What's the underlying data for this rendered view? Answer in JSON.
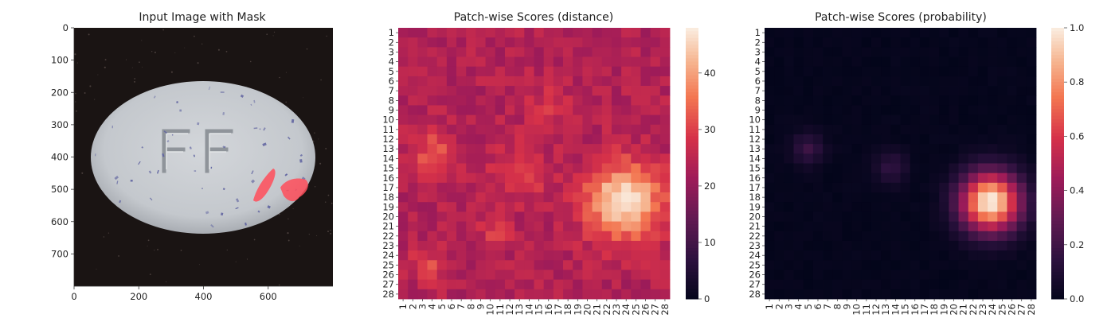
{
  "chart_data": [
    {
      "type": "image",
      "title": "Input Image with Mask",
      "xlim": [
        0,
        800
      ],
      "ylim": [
        800,
        0
      ],
      "xticks": [
        0,
        200,
        400,
        600
      ],
      "yticks": [
        0,
        100,
        200,
        300,
        400,
        500,
        600,
        700
      ],
      "embossed_text": "FF",
      "colors": {
        "background": "#1a1413",
        "pill": "#c7cbd0",
        "speck": "#5f63a0",
        "mask": "#ff4d5a"
      }
    },
    {
      "type": "heatmap",
      "title": "Patch-wise Scores (distance)",
      "rows": 28,
      "cols": 28,
      "tick_labels": [
        "1",
        "2",
        "3",
        "4",
        "5",
        "6",
        "7",
        "8",
        "9",
        "10",
        "11",
        "12",
        "13",
        "14",
        "15",
        "16",
        "17",
        "18",
        "19",
        "20",
        "21",
        "22",
        "23",
        "24",
        "25",
        "26",
        "27",
        "28"
      ],
      "colormap": "rocket",
      "vmin": 0,
      "vmax": 48,
      "colorbar_ticks": [
        0,
        10,
        20,
        30,
        40
      ],
      "background_level": 24,
      "blobs": [
        {
          "row": 18.5,
          "col": 23.8,
          "radius": 3.6,
          "peak": 48
        },
        {
          "row": 13.5,
          "col": 4.2,
          "radius": 2.2,
          "peak": 33
        },
        {
          "row": 15.5,
          "col": 13.0,
          "radius": 2.6,
          "peak": 31
        },
        {
          "row": 21.5,
          "col": 10.5,
          "radius": 1.4,
          "peak": 30
        },
        {
          "row": 25.0,
          "col": 3.5,
          "radius": 1.6,
          "peak": 31
        },
        {
          "row": 8.5,
          "col": 16.0,
          "radius": 2.4,
          "peak": 28
        }
      ]
    },
    {
      "type": "heatmap",
      "title": "Patch-wise Scores (probability)",
      "rows": 28,
      "cols": 28,
      "tick_labels": [
        "1",
        "2",
        "3",
        "4",
        "5",
        "6",
        "7",
        "8",
        "9",
        "10",
        "11",
        "12",
        "13",
        "14",
        "15",
        "16",
        "17",
        "18",
        "19",
        "20",
        "21",
        "22",
        "23",
        "24",
        "25",
        "26",
        "27",
        "28"
      ],
      "colormap": "rocket",
      "vmin": 0.0,
      "vmax": 1.0,
      "colorbar_ticks": [
        "0.0",
        "0.2",
        "0.4",
        "0.6",
        "0.8",
        "1.0"
      ],
      "background_level": 0.0,
      "blobs": [
        {
          "row": 18.5,
          "col": 23.8,
          "radius": 2.9,
          "peak": 1.0
        },
        {
          "row": 13.0,
          "col": 5.0,
          "radius": 1.5,
          "peak": 0.18
        },
        {
          "row": 15.0,
          "col": 13.5,
          "radius": 1.6,
          "peak": 0.15
        }
      ]
    }
  ]
}
